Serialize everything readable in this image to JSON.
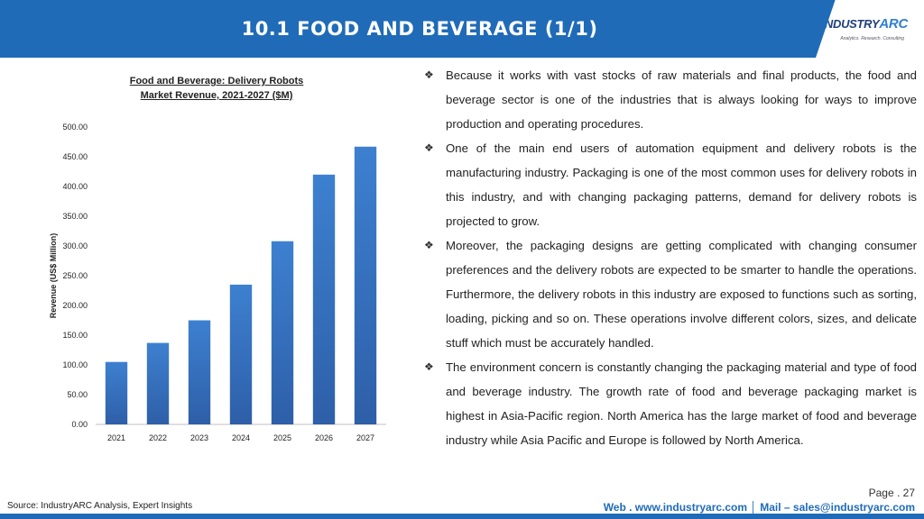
{
  "header": {
    "title": "10.1 FOOD AND BEVERAGE (1/1)"
  },
  "logo": {
    "brand_main": "INDUSTRY",
    "brand_accent": "ARC",
    "tagline": "Analytics. Research. Consulting"
  },
  "chart_data": {
    "type": "bar",
    "title_line1": "Food and Beverage: Delivery Robots",
    "title_line2": "Market Revenue, 2021-2027 ($M)",
    "xlabel": "",
    "ylabel": "Revenue (US$ Million)",
    "categories": [
      "2021",
      "2022",
      "2023",
      "2024",
      "2025",
      "2026",
      "2027"
    ],
    "values": [
      105,
      137,
      175,
      235,
      308,
      420,
      467
    ],
    "ylim": [
      0,
      500
    ],
    "yticks": [
      "0.00",
      "50.00",
      "100.00",
      "150.00",
      "200.00",
      "250.00",
      "300.00",
      "350.00",
      "400.00",
      "450.00",
      "500.00"
    ],
    "bar_color": "#3474c4",
    "grid": false
  },
  "bullets": [
    "Because it works with vast stocks of raw materials and final products, the food and beverage sector is one of the industries that is always looking for ways to improve production and operating procedures.",
    "One of the main end users of automation equipment and delivery robots is the manufacturing industry. Packaging is one of the most common uses for delivery robots in this industry, and with changing packaging patterns, demand for delivery robots is projected to grow.",
    "Moreover, the packaging designs are getting complicated with changing consumer preferences and the delivery robots are expected to be smarter to handle the operations. Furthermore, the delivery robots in this industry are exposed to functions such as sorting, loading, picking and so on. These operations involve different colors, sizes, and delicate stuff which must be accurately handled.",
    "The environment concern is constantly changing the packaging material and type of food and beverage industry. The growth rate of food and beverage packaging market is highest in Asia-Pacific region. North America has the large market of food and beverage industry while Asia Pacific and Europe is followed by North America."
  ],
  "bullet_icon": "diamond-cluster-icon",
  "footer": {
    "page": "Page . 27",
    "source": "Source: IndustryARC Analysis, Expert Insights",
    "contact": "Web . www.industryarc.com │ Mail – sales@industryarc.com"
  },
  "colors": {
    "brand_blue": "#1f6bb8",
    "bar": "#3474c4"
  }
}
